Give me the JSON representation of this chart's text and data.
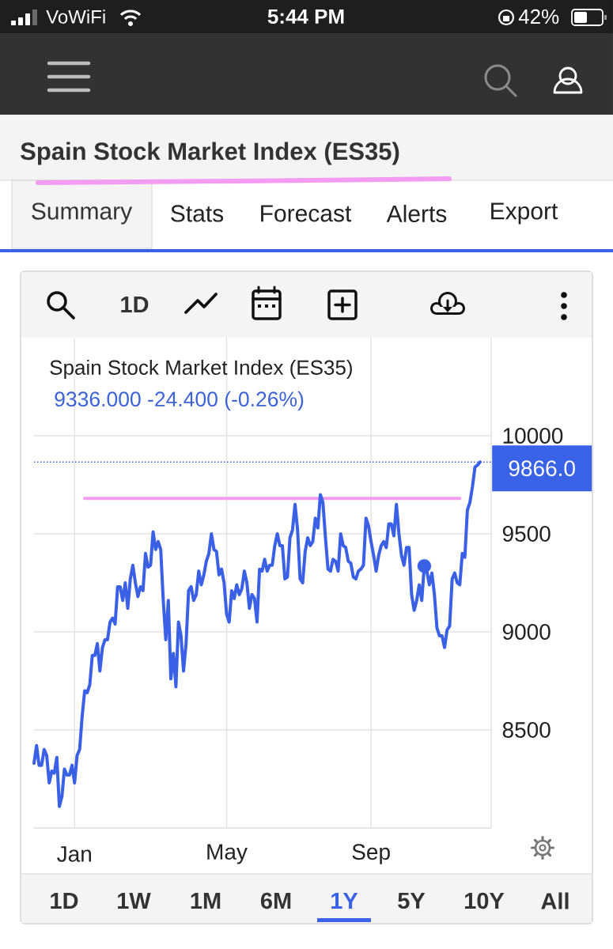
{
  "chart_data": {
    "type": "line",
    "title": "Spain Stock Market Index (ES35)",
    "subtitle": "9336.000 -24.400 (-0.26%)",
    "annotations": [
      "VoWiFi",
      "5:44 PM",
      "42%",
      "Spain Stock Market Index (ES35)",
      "Summary",
      "Stats",
      "Forecast",
      "Alerts",
      "Export",
      "1D",
      "1D",
      "1W",
      "1M",
      "6M",
      "1Y",
      "5Y",
      "10Y",
      "All"
    ],
    "categories": [
      null,
      null,
      null,
      null,
      null,
      null,
      null,
      null,
      null,
      null,
      null,
      null,
      null,
      null,
      null,
      null,
      "Jan",
      null,
      null,
      null,
      null,
      null,
      null,
      null,
      null,
      null,
      null,
      null,
      null,
      null,
      null,
      null,
      null,
      null,
      null,
      null,
      null,
      null,
      null,
      null,
      null,
      null,
      null,
      null,
      null,
      null,
      null,
      null,
      null,
      null,
      null,
      null,
      null,
      null,
      null,
      null,
      null,
      null,
      null,
      null,
      null,
      null,
      null,
      null,
      null,
      null,
      null,
      null,
      null,
      null,
      null,
      null,
      null,
      null,
      null,
      null,
      "May",
      null,
      null,
      null,
      null,
      null,
      null,
      null,
      null,
      null,
      null,
      null,
      null,
      null,
      null,
      null,
      null,
      null,
      null,
      null,
      null,
      null,
      null,
      null,
      null,
      null,
      null,
      null,
      null,
      null,
      null,
      null,
      null,
      null,
      null,
      null,
      null,
      null,
      null,
      null,
      null,
      null,
      null,
      null,
      null,
      null,
      null,
      null,
      null,
      null,
      null,
      null,
      null,
      null,
      null,
      null,
      null,
      "Sep",
      null,
      null,
      null,
      null,
      null,
      null,
      null,
      null,
      null,
      null,
      null,
      null,
      null,
      null,
      null,
      null,
      null,
      null,
      null,
      null,
      null,
      null,
      null,
      null,
      null,
      null,
      null,
      null,
      null,
      null,
      null,
      null,
      null,
      null,
      null,
      null,
      null,
      null,
      null,
      null,
      null,
      null,
      null
    ],
    "ylim": [
      8000,
      10500
    ],
    "yticks": [
      {
        "value": 8000,
        "label": null
      },
      8500,
      9000,
      9500,
      10000
    ],
    "grid": true,
    "ref_lines": [
      {
        "axis": "y",
        "value": 9866,
        "label": "9866.0",
        "color": "#3a62e6",
        "line_style": "dotted"
      }
    ],
    "series": [
      {
        "color": "#f29cf2",
        "values": [
          null,
          null,
          null,
          null,
          null,
          null,
          null,
          null,
          null,
          null,
          null,
          null,
          null,
          null,
          null,
          null,
          null,
          null,
          null,
          null,
          9680,
          9680,
          9680,
          9680,
          9680,
          9680,
          9680,
          9680,
          9680,
          9680,
          9680,
          9680,
          9680,
          9680,
          9680,
          9680,
          9680,
          9680,
          9680,
          9680,
          9680,
          9680,
          9680,
          9680,
          9680,
          9680,
          9680,
          9680,
          9680,
          9680,
          9680,
          9680,
          9680,
          9680,
          9680,
          9680,
          9680,
          9680,
          9680,
          9680,
          9680,
          9680,
          9680,
          9680,
          9680,
          9680,
          9680,
          9680,
          9680,
          9680,
          9680,
          9680,
          9680,
          9680,
          9680,
          9680,
          9680,
          9680,
          9680,
          9680,
          9680,
          9680,
          9680,
          9680,
          9680,
          9680,
          9680,
          9680,
          9680,
          9680,
          9680,
          9680,
          9680,
          9680,
          9680,
          9680,
          9680,
          9680,
          9680,
          9680,
          9680,
          9680,
          9680,
          9680,
          9680,
          9680,
          9680,
          9680,
          9680,
          9680,
          9680,
          9680,
          9680,
          9680,
          9680,
          9680,
          9680,
          9680,
          9680,
          9680,
          9680,
          9680,
          9680,
          9680,
          9680,
          9680,
          9680,
          9680,
          9680,
          9680,
          9680,
          9680,
          9680,
          9680,
          9680,
          9680,
          9680,
          9680,
          9680,
          9680,
          9680,
          9680,
          9680,
          9680,
          9680,
          9680,
          9680,
          9680,
          9680,
          9680,
          9680,
          9680,
          9680,
          9680,
          9680,
          9680,
          9680,
          9680,
          9680,
          9680,
          9680,
          9680,
          9680,
          9680,
          9680,
          9680,
          9680,
          9680,
          9680,
          null,
          null,
          null,
          null,
          null,
          null,
          null,
          null
        ]
      },
      {
        "color": "#3a60e6",
        "values": [
          8330,
          8420,
          8320,
          8320,
          8400,
          8370,
          8230,
          8290,
          8280,
          8360,
          8110,
          8160,
          8300,
          8270,
          8270,
          8320,
          8230,
          8370,
          8400,
          8570,
          8700,
          8690,
          8730,
          8880,
          8880,
          8940,
          8800,
          8920,
          8960,
          8960,
          9050,
          9070,
          9040,
          9230,
          9230,
          9160,
          9250,
          9120,
          9270,
          9340,
          9250,
          9180,
          9230,
          9210,
          9400,
          9330,
          9340,
          9510,
          9420,
          9460,
          9420,
          9160,
          8960,
          9160,
          8760,
          8890,
          8720,
          9050,
          8980,
          8800,
          8940,
          9210,
          9230,
          9160,
          9190,
          9310,
          9240,
          9290,
          9360,
          9400,
          9500,
          9420,
          9410,
          9290,
          9320,
          9250,
          9090,
          9050,
          9210,
          9170,
          9240,
          9190,
          9220,
          9310,
          9250,
          9120,
          9190,
          9170,
          9050,
          9320,
          9310,
          9370,
          9310,
          9340,
          9340,
          9440,
          9500,
          9440,
          9440,
          9270,
          9280,
          9480,
          9520,
          9650,
          9520,
          9270,
          9250,
          9410,
          9480,
          9440,
          9460,
          9580,
          9530,
          9700,
          9660,
          9480,
          9320,
          9310,
          9370,
          9360,
          9310,
          9500,
          9440,
          9430,
          9360,
          9350,
          9280,
          9270,
          9310,
          9320,
          9340,
          9580,
          9540,
          9460,
          9390,
          9310,
          9390,
          9440,
          9460,
          9430,
          9550,
          9550,
          9490,
          9650,
          9500,
          9390,
          9340,
          9430,
          9430,
          9190,
          9110,
          9160,
          9240,
          9160,
          9336,
          9310,
          9240,
          9300,
          9190,
          9020,
          8980,
          8980,
          8920,
          9010,
          9030,
          9270,
          9300,
          9250,
          9240,
          9400,
          9380,
          9620,
          9660,
          9740,
          9840,
          9850,
          9866
        ]
      },
      {
        "type": "scatter",
        "marker": "circle",
        "color": "#3a60e6",
        "values": [
          null,
          null,
          null,
          null,
          null,
          null,
          null,
          null,
          null,
          null,
          null,
          null,
          null,
          null,
          null,
          null,
          null,
          null,
          null,
          null,
          null,
          null,
          null,
          null,
          null,
          null,
          null,
          null,
          null,
          null,
          null,
          null,
          null,
          null,
          null,
          null,
          null,
          null,
          null,
          null,
          null,
          null,
          null,
          null,
          null,
          null,
          null,
          null,
          null,
          null,
          null,
          null,
          null,
          null,
          null,
          null,
          null,
          null,
          null,
          null,
          null,
          null,
          null,
          null,
          null,
          null,
          null,
          null,
          null,
          null,
          null,
          null,
          null,
          null,
          null,
          null,
          null,
          null,
          null,
          null,
          null,
          null,
          null,
          null,
          null,
          null,
          null,
          null,
          null,
          null,
          null,
          null,
          null,
          null,
          null,
          null,
          null,
          null,
          null,
          null,
          null,
          null,
          null,
          null,
          null,
          null,
          null,
          null,
          null,
          null,
          null,
          null,
          null,
          null,
          null,
          null,
          null,
          null,
          null,
          null,
          null,
          null,
          null,
          null,
          null,
          null,
          null,
          null,
          null,
          null,
          null,
          null,
          null,
          null,
          null,
          null,
          null,
          null,
          null,
          null,
          null,
          null,
          null,
          null,
          null,
          null,
          null,
          null,
          null,
          null,
          null,
          null,
          null,
          null,
          9336,
          null,
          null,
          null,
          null,
          null,
          null,
          null,
          null,
          null,
          null,
          null,
          null,
          null,
          null,
          null,
          null,
          null,
          null,
          null,
          null,
          null,
          null
        ]
      }
    ]
  }
}
